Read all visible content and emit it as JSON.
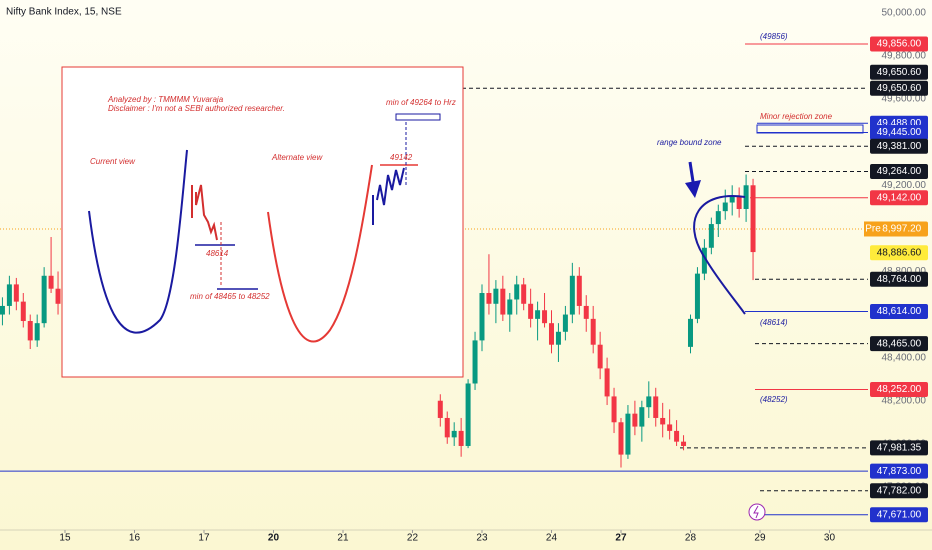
{
  "chart_data": {
    "type": "candlestick",
    "title": "Nifty Bank Index, 15, NSE",
    "xlim": [
      -0.935,
      11.554
    ],
    "ylim": [
      47600,
      50060
    ],
    "xticks": [
      {
        "value": 0,
        "label": "15"
      },
      {
        "value": 1,
        "label": "16"
      },
      {
        "value": 2,
        "label": "17"
      },
      {
        "value": 3,
        "label": "20",
        "week_start": true
      },
      {
        "value": 4,
        "label": "21"
      },
      {
        "value": 5,
        "label": "22"
      },
      {
        "value": 6,
        "label": "23"
      },
      {
        "value": 7,
        "label": "24"
      },
      {
        "value": 8,
        "label": "27",
        "week_start": true
      },
      {
        "value": 9,
        "label": "28"
      },
      {
        "value": 10,
        "label": "29"
      },
      {
        "value": 11,
        "label": "30"
      }
    ],
    "yticks": [
      {
        "value": 50000,
        "label": "50,000.00"
      },
      {
        "value": 49800,
        "label": "49,800.00"
      },
      {
        "value": 49600,
        "label": "49,600.00"
      },
      {
        "value": 49400,
        "label": "49,400.00"
      },
      {
        "value": 49200,
        "label": "49,200.00"
      },
      {
        "value": 49000,
        "label": "49,000.00"
      },
      {
        "value": 48800,
        "label": "48,800.00"
      },
      {
        "value": 48600,
        "label": "48,600.00"
      },
      {
        "value": 48400,
        "label": "48,400.00"
      },
      {
        "value": 48200,
        "label": "48,200.00"
      },
      {
        "value": 48000,
        "label": "48,000.00"
      },
      {
        "value": 47800,
        "label": "47,800.00"
      }
    ],
    "up_color": "#089981",
    "down_color": "#f23645",
    "x": [
      -0.9,
      -0.8,
      -0.7,
      -0.6,
      -0.5,
      -0.4,
      -0.3,
      -0.2,
      -0.1,
      5.4,
      5.5,
      5.6,
      5.7,
      5.8,
      5.9,
      6.0,
      6.1,
      6.2,
      6.3,
      6.4,
      6.5,
      6.6,
      6.7,
      6.8,
      6.9,
      7.0,
      7.1,
      7.2,
      7.3,
      7.4,
      7.5,
      7.6,
      7.7,
      7.8,
      7.9,
      8.0,
      8.1,
      8.2,
      8.3,
      8.4,
      8.5,
      8.6,
      8.7,
      8.8,
      8.9,
      9.0,
      9.1,
      9.2,
      9.3,
      9.4,
      9.5,
      9.6,
      9.7,
      9.8,
      9.9
    ],
    "open": [
      48600,
      48640,
      48740,
      48660,
      48570,
      48480,
      48560,
      48780,
      48720,
      48200,
      48120,
      48030,
      48060,
      47990,
      48280,
      48480,
      48700,
      48650,
      48720,
      48600,
      48670,
      48740,
      48650,
      48580,
      48620,
      48560,
      48460,
      48520,
      48600,
      48780,
      48640,
      48580,
      48460,
      48350,
      48220,
      48100,
      47950,
      48140,
      48080,
      48170,
      48220,
      48120,
      48090,
      48060,
      48010,
      48450,
      48580,
      48790,
      48910,
      49020,
      49080,
      49120,
      49150,
      49090,
      49200
    ],
    "high": [
      48680,
      48780,
      48770,
      48700,
      48600,
      48600,
      48820,
      48960,
      48800,
      48230,
      48150,
      48100,
      48120,
      48300,
      48520,
      48740,
      48880,
      48760,
      48780,
      48700,
      48780,
      48770,
      48720,
      48660,
      48700,
      48620,
      48560,
      48640,
      48840,
      48820,
      48690,
      48640,
      48520,
      48400,
      48260,
      48120,
      48180,
      48200,
      48200,
      48290,
      48260,
      48190,
      48160,
      48110,
      48040,
      48600,
      48820,
      48950,
      49050,
      49110,
      49180,
      49200,
      49190,
      49250,
      49230
    ],
    "low": [
      48550,
      48600,
      48620,
      48540,
      48440,
      48450,
      48540,
      48700,
      48600,
      48080,
      48000,
      47990,
      47940,
      47980,
      48250,
      48430,
      48600,
      48560,
      48570,
      48520,
      48600,
      48620,
      48540,
      48480,
      48540,
      48420,
      48380,
      48480,
      48560,
      48600,
      48520,
      48420,
      48300,
      48180,
      48050,
      47890,
      47930,
      48040,
      48010,
      48120,
      48080,
      48030,
      48020,
      47990,
      47970,
      48420,
      48560,
      48760,
      48880,
      48960,
      49040,
      49060,
      49050,
      49030,
      48760
    ],
    "close": [
      48640,
      48740,
      48660,
      48570,
      48480,
      48560,
      48780,
      48720,
      48650,
      48120,
      48030,
      48060,
      47990,
      48280,
      48480,
      48700,
      48650,
      48720,
      48600,
      48670,
      48740,
      48650,
      48580,
      48620,
      48560,
      48460,
      48520,
      48600,
      48780,
      48640,
      48580,
      48460,
      48350,
      48220,
      48100,
      47950,
      48140,
      48080,
      48170,
      48220,
      48120,
      48090,
      48060,
      48010,
      47990,
      48580,
      48790,
      48910,
      49020,
      49080,
      49120,
      49150,
      49090,
      49200,
      48890
    ],
    "levels": [
      {
        "value": 49856,
        "label": "49,856.00",
        "color": "#f23645",
        "style": "solid"
      },
      {
        "value": 49650.6,
        "label": "49,650.60",
        "color": "#131722",
        "style": "none"
      },
      {
        "value": 49650.6,
        "label": "49,650.60",
        "color": "#131722",
        "style": "dashed"
      },
      {
        "value": 49488,
        "label": "49,488.00",
        "color": "#2132cc",
        "style": "solid"
      },
      {
        "value": 49445,
        "label": "49,445.00",
        "color": "#2132cc",
        "style": "solid"
      },
      {
        "value": 49381,
        "label": "49,381.00",
        "color": "#131722",
        "style": "dashed"
      },
      {
        "value": 49264,
        "label": "49,264.00",
        "color": "#131722",
        "style": "dashed"
      },
      {
        "value": 49142,
        "label": "49,142.00",
        "color": "#f23645",
        "style": "solid"
      },
      {
        "value": 48997.2,
        "label": "48,997.20",
        "color": "#f7a21b",
        "style": "dotted",
        "prefix": "Pre"
      },
      {
        "value": 48886.6,
        "label": "48,886.60",
        "color": "#ffeb3b",
        "style": "none"
      },
      {
        "value": 48764,
        "label": "48,764.00",
        "color": "#131722",
        "style": "dashed"
      },
      {
        "value": 48614,
        "label": "48,614.00",
        "color": "#2132cc",
        "style": "solid"
      },
      {
        "value": 48465,
        "label": "48,465.00",
        "color": "#131722",
        "style": "dashed"
      },
      {
        "value": 48252,
        "label": "48,252.00",
        "color": "#f23645",
        "style": "solid"
      },
      {
        "value": 47981.35,
        "label": "47,981.35",
        "color": "#131722",
        "style": "dashed"
      },
      {
        "value": 47873,
        "label": "47,873.00",
        "color": "#2132cc",
        "style": "solid"
      },
      {
        "value": 47782,
        "label": "47,782.00",
        "color": "#131722",
        "style": "dashed"
      },
      {
        "value": 47671,
        "label": "47,671.00",
        "color": "#2132cc",
        "style": "solid"
      }
    ],
    "annotations": {
      "analyzed_by": "Analyzed by : TMMMM Yuvaraja",
      "disclaimer": "Disclaimer : I'm not a SEBI authorized researcher.",
      "current_view": "Current view",
      "alternate_view": "Alternate view",
      "sketch_support": "48614",
      "sketch_target_down": "min of 48465 to 48252",
      "sketch_resistance": "49142",
      "sketch_target_up": "min of 49264 to Hrz",
      "range_bound_zone": "range bound zone",
      "minor_rejection_zone": "Minor rejection zone",
      "tag_top": "(49856)",
      "tag_mid": "(48614)",
      "tag_low": "(48252)"
    }
  }
}
